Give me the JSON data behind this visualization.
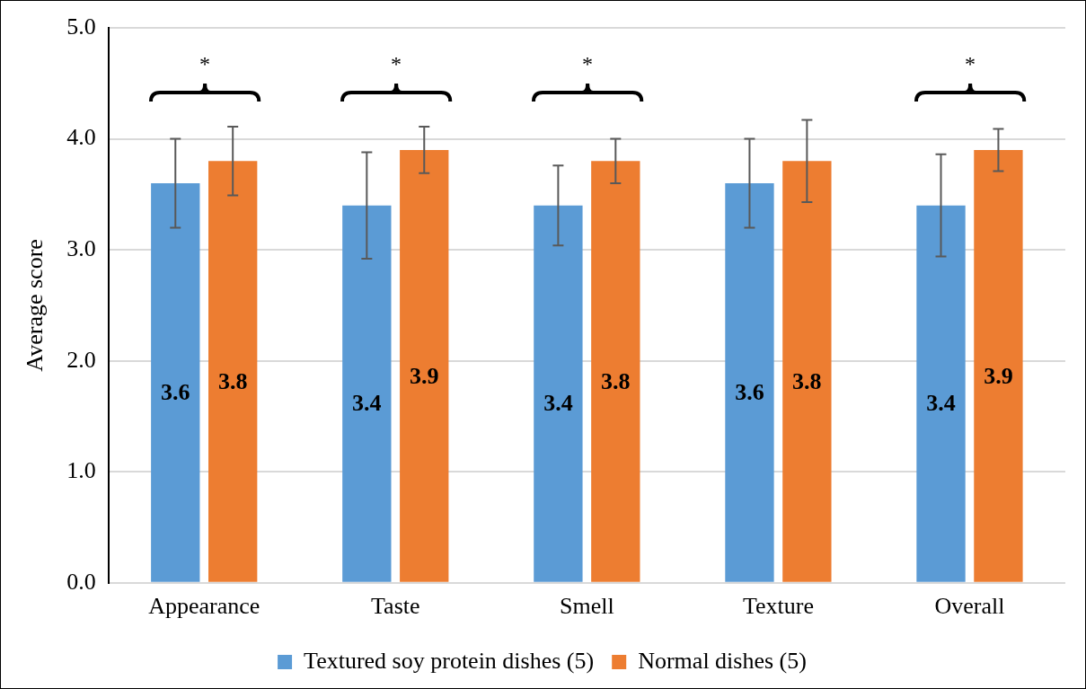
{
  "chart_data": {
    "type": "bar",
    "ylabel": "Average score",
    "categories": [
      "Appearance",
      "Taste",
      "Smell",
      "Texture",
      "Overall"
    ],
    "series": [
      {
        "name": "Textured soy protein dishes (5)",
        "color": "#5b9bd5",
        "values": [
          3.6,
          3.4,
          3.4,
          3.6,
          3.4
        ],
        "errors": [
          0.4,
          0.48,
          0.36,
          0.4,
          0.46
        ]
      },
      {
        "name": "Normal dishes (5)",
        "color": "#ed7d31",
        "values": [
          3.8,
          3.9,
          3.8,
          3.8,
          3.9
        ],
        "errors": [
          0.31,
          0.21,
          0.2,
          0.37,
          0.19
        ]
      }
    ],
    "ylim": [
      0,
      5
    ],
    "yticks": [
      {
        "value": 0,
        "label": "0.0"
      },
      {
        "value": 1,
        "label": "1.0"
      },
      {
        "value": 2,
        "label": "2.0"
      },
      {
        "value": 3,
        "label": "3.0"
      },
      {
        "value": 4,
        "label": "4.0"
      },
      {
        "value": 5,
        "label": "5.0"
      }
    ],
    "grid": "y",
    "legend": "bottom",
    "data_labels": true,
    "annotations": [
      "*",
      "*",
      "*",
      "*"
    ]
  }
}
